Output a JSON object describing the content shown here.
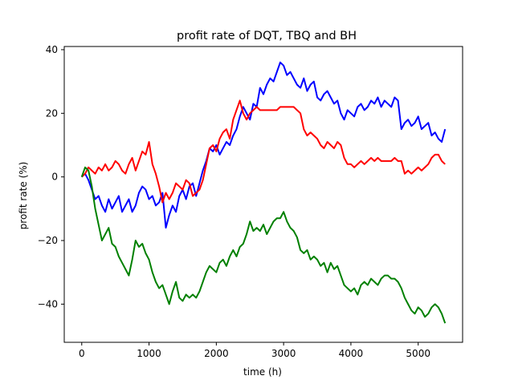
{
  "chart_data": {
    "type": "line",
    "title": "profit rate of DQT, TBQ and BH",
    "xlabel": "time (h)",
    "ylabel": "profit rate (%)",
    "xlim": [
      -260,
      5660
    ],
    "ylim": [
      -52,
      41
    ],
    "xticks": [
      0,
      1000,
      2000,
      3000,
      4000,
      5000
    ],
    "yticks": [
      -40,
      -20,
      0,
      20,
      40
    ],
    "xtick_labels": [
      "0",
      "1000",
      "2000",
      "3000",
      "4000",
      "5000"
    ],
    "ytick_labels": [
      "−40",
      "−20",
      "0",
      "20",
      "40"
    ],
    "grid": false,
    "legend": "none",
    "series": [
      {
        "color": "#0000ff",
        "x": [
          0,
          50,
          100,
          150,
          200,
          250,
          300,
          350,
          400,
          450,
          500,
          550,
          600,
          650,
          700,
          750,
          800,
          850,
          900,
          950,
          1000,
          1050,
          1100,
          1150,
          1200,
          1250,
          1300,
          1350,
          1400,
          1450,
          1500,
          1550,
          1600,
          1650,
          1700,
          1750,
          1800,
          1850,
          1900,
          1950,
          2000,
          2050,
          2100,
          2150,
          2200,
          2250,
          2300,
          2350,
          2400,
          2450,
          2500,
          2550,
          2600,
          2650,
          2700,
          2750,
          2800,
          2850,
          2900,
          2950,
          3000,
          3050,
          3100,
          3150,
          3200,
          3250,
          3300,
          3350,
          3400,
          3450,
          3500,
          3550,
          3600,
          3650,
          3700,
          3750,
          3800,
          3850,
          3900,
          3950,
          4000,
          4050,
          4100,
          4150,
          4200,
          4250,
          4300,
          4350,
          4400,
          4450,
          4500,
          4550,
          4600,
          4650,
          4700,
          4750,
          4800,
          4850,
          4900,
          4950,
          5000,
          5050,
          5100,
          5150,
          5200,
          5250,
          5300,
          5350,
          5400
        ],
        "y": [
          0,
          1,
          -1,
          -4,
          -7,
          -6,
          -9,
          -11,
          -7,
          -10,
          -8,
          -6,
          -11,
          -9,
          -7,
          -11,
          -9,
          -5,
          -3,
          -4,
          -7,
          -6,
          -9,
          -8,
          -5,
          -16,
          -12,
          -9,
          -11,
          -6,
          -4,
          -7,
          -3,
          -2,
          -6,
          -2,
          2,
          5,
          9,
          8,
          10,
          7,
          9,
          11,
          10,
          13,
          15,
          19,
          22,
          20,
          18,
          23,
          22,
          28,
          26,
          29,
          31,
          30,
          33,
          36,
          35,
          32,
          33,
          31,
          29,
          28,
          31,
          27,
          29,
          30,
          25,
          24,
          26,
          27,
          25,
          23,
          24,
          20,
          18,
          21,
          20,
          19,
          22,
          23,
          21,
          22,
          24,
          23,
          25,
          22,
          24,
          23,
          22,
          25,
          24,
          15,
          17,
          18,
          16,
          17,
          19,
          15,
          16,
          17,
          13,
          14,
          12,
          11,
          15
        ]
      },
      {
        "color": "#ff0000",
        "x": [
          0,
          50,
          100,
          150,
          200,
          250,
          300,
          350,
          400,
          450,
          500,
          550,
          600,
          650,
          700,
          750,
          800,
          850,
          900,
          950,
          1000,
          1050,
          1100,
          1150,
          1200,
          1250,
          1300,
          1350,
          1400,
          1450,
          1500,
          1550,
          1600,
          1650,
          1700,
          1750,
          1800,
          1850,
          1900,
          1950,
          2000,
          2050,
          2100,
          2150,
          2200,
          2250,
          2300,
          2350,
          2400,
          2450,
          2500,
          2550,
          2600,
          2650,
          2700,
          2750,
          2800,
          2850,
          2900,
          2950,
          3000,
          3050,
          3100,
          3150,
          3200,
          3250,
          3300,
          3350,
          3400,
          3450,
          3500,
          3550,
          3600,
          3650,
          3700,
          3750,
          3800,
          3850,
          3900,
          3950,
          4000,
          4050,
          4100,
          4150,
          4200,
          4250,
          4300,
          4350,
          4400,
          4450,
          4500,
          4550,
          4600,
          4650,
          4700,
          4750,
          4800,
          4850,
          4900,
          4950,
          5000,
          5050,
          5100,
          5150,
          5200,
          5250,
          5300,
          5350,
          5400
        ],
        "y": [
          0,
          1,
          3,
          2,
          1,
          3,
          2,
          4,
          2,
          3,
          5,
          4,
          2,
          1,
          4,
          6,
          2,
          5,
          8,
          7,
          11,
          4,
          1,
          -3,
          -8,
          -5,
          -7,
          -5,
          -2,
          -3,
          -4,
          -1,
          -2,
          -6,
          -5,
          -4,
          -1,
          4,
          9,
          10,
          8,
          12,
          14,
          15,
          12,
          18,
          21,
          24,
          20,
          18,
          20,
          21,
          22,
          21,
          21,
          21,
          21,
          21,
          21,
          22,
          22,
          22,
          22,
          22,
          21,
          20,
          15,
          13,
          14,
          13,
          12,
          10,
          9,
          11,
          10,
          9,
          11,
          10,
          6,
          4,
          4,
          3,
          4,
          5,
          4,
          5,
          6,
          5,
          6,
          5,
          5,
          5,
          5,
          6,
          5,
          5,
          1,
          2,
          1,
          2,
          3,
          2,
          3,
          4,
          6,
          7,
          7,
          5,
          4
        ]
      },
      {
        "color": "#008000",
        "x": [
          0,
          50,
          100,
          150,
          200,
          250,
          300,
          350,
          400,
          450,
          500,
          550,
          600,
          650,
          700,
          750,
          800,
          850,
          900,
          950,
          1000,
          1050,
          1100,
          1150,
          1200,
          1250,
          1300,
          1350,
          1400,
          1450,
          1500,
          1550,
          1600,
          1650,
          1700,
          1750,
          1800,
          1850,
          1900,
          1950,
          2000,
          2050,
          2100,
          2150,
          2200,
          2250,
          2300,
          2350,
          2400,
          2450,
          2500,
          2550,
          2600,
          2650,
          2700,
          2750,
          2800,
          2850,
          2900,
          2950,
          3000,
          3050,
          3100,
          3150,
          3200,
          3250,
          3300,
          3350,
          3400,
          3450,
          3500,
          3550,
          3600,
          3650,
          3700,
          3750,
          3800,
          3850,
          3900,
          3950,
          4000,
          4050,
          4100,
          4150,
          4200,
          4250,
          4300,
          4350,
          4400,
          4450,
          4500,
          4550,
          4600,
          4650,
          4700,
          4750,
          4800,
          4850,
          4900,
          4950,
          5000,
          5050,
          5100,
          5150,
          5200,
          5250,
          5300,
          5350,
          5400
        ],
        "y": [
          0,
          3,
          2,
          -3,
          -10,
          -15,
          -20,
          -18,
          -16,
          -21,
          -22,
          -25,
          -27,
          -29,
          -31,
          -26,
          -20,
          -22,
          -21,
          -24,
          -26,
          -30,
          -33,
          -35,
          -34,
          -37,
          -40,
          -36,
          -33,
          -38,
          -39,
          -37,
          -38,
          -37,
          -38,
          -36,
          -33,
          -30,
          -28,
          -29,
          -30,
          -27,
          -26,
          -28,
          -25,
          -23,
          -25,
          -22,
          -21,
          -18,
          -14,
          -17,
          -16,
          -17,
          -15,
          -18,
          -16,
          -14,
          -13,
          -13,
          -11,
          -14,
          -16,
          -17,
          -19,
          -23,
          -24,
          -23,
          -26,
          -25,
          -26,
          -28,
          -27,
          -30,
          -27,
          -29,
          -28,
          -31,
          -34,
          -35,
          -36,
          -35,
          -37,
          -34,
          -33,
          -34,
          -32,
          -33,
          -34,
          -32,
          -31,
          -31,
          -32,
          -32,
          -33,
          -35,
          -38,
          -40,
          -42,
          -43,
          -41,
          -42,
          -44,
          -43,
          -41,
          -40,
          -41,
          -43,
          -46
        ]
      }
    ]
  }
}
